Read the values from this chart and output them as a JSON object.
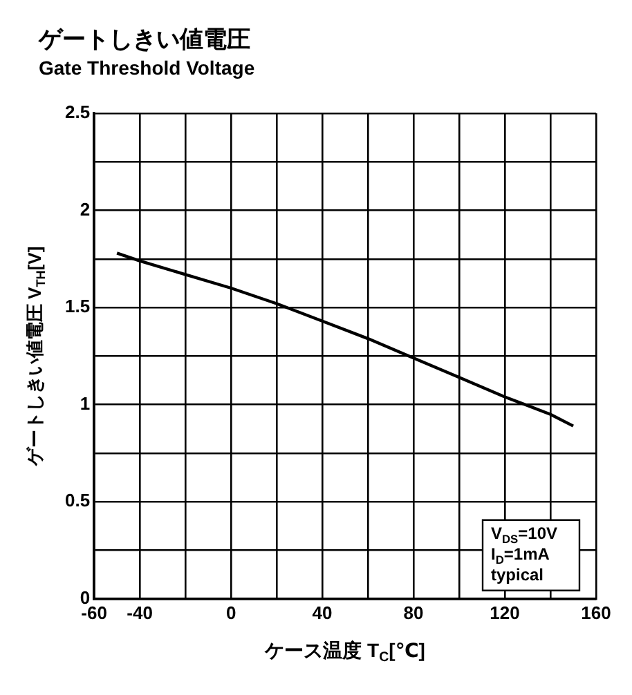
{
  "chart_data": {
    "type": "line",
    "title": "ゲートしきい値電圧",
    "subtitle": "Gate Threshold Voltage",
    "xlabel": "ケース温度 T$_{C}$[℃]",
    "ylabel": "ゲートしきい値電圧 V$_{TH}$[V]",
    "x": [
      -50,
      -40,
      -20,
      0,
      20,
      40,
      60,
      80,
      100,
      120,
      140,
      150
    ],
    "series": [
      {
        "color": "#000000",
        "values": [
          1.78,
          1.74,
          1.67,
          1.6,
          1.52,
          1.43,
          1.34,
          1.24,
          1.14,
          1.04,
          0.95,
          0.89
        ]
      }
    ],
    "xlim": [
      -60,
      160
    ],
    "xticks": [
      -60,
      -40,
      {
        "value": -20,
        "label": null
      },
      0,
      {
        "value": 20,
        "label": null
      },
      40,
      {
        "value": 60,
        "label": null
      },
      80,
      {
        "value": 100,
        "label": null
      },
      120,
      {
        "value": 140,
        "label": null
      },
      160
    ],
    "ylim": [
      0,
      2.5
    ],
    "yticks": [
      0,
      {
        "value": 0.25,
        "label": null
      },
      0.5,
      {
        "value": 0.75,
        "label": null
      },
      1,
      {
        "value": 1.25,
        "label": null
      },
      1.5,
      {
        "value": 1.75,
        "label": null
      },
      2,
      {
        "value": 2.25,
        "label": null
      },
      2.5
    ],
    "annotations": [
      "V$_{DS}$=10V",
      "I$_{D}$=1mA",
      "typical"
    ],
    "grid": true,
    "legend": false,
    "marker": "none",
    "line_style": "solid"
  }
}
